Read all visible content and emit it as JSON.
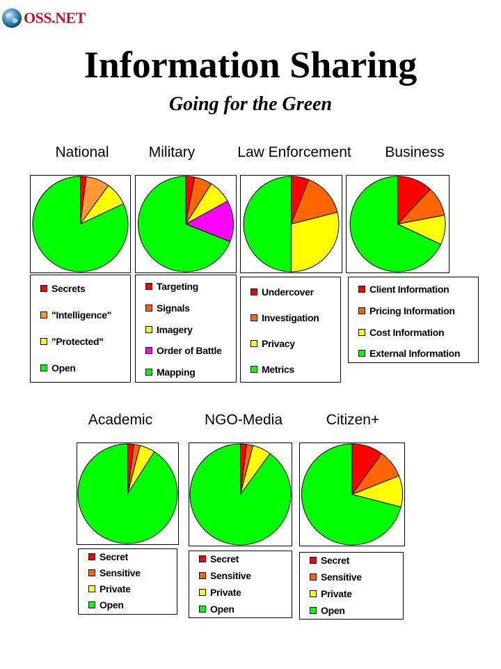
{
  "header": {
    "logo_text": "OSS.NET",
    "title": "Information Sharing",
    "subtitle": "Going for the Green"
  },
  "colors": {
    "red": "#ff0000",
    "orange": "#ff6600",
    "light_orange": "#ff9933",
    "yellow": "#ffff00",
    "magenta": "#ff00ff",
    "green": "#00ff00",
    "logo_red": "#c8102e"
  },
  "chart_data": [
    {
      "type": "pie",
      "title": "National",
      "labels": [
        "Secrets",
        "\"Intelligence\"",
        "\"Protected\"",
        "Open"
      ],
      "values": [
        2,
        8,
        8,
        82
      ],
      "colors": [
        "#ff0000",
        "#ff9933",
        "#ffff00",
        "#00ff00"
      ]
    },
    {
      "type": "pie",
      "title": "Military",
      "labels": [
        "Targeting",
        "Signals",
        "Imagery",
        "Order of Battle",
        "Mapping"
      ],
      "values": [
        3,
        6,
        8,
        14,
        69
      ],
      "colors": [
        "#ff0000",
        "#ff6600",
        "#ffff00",
        "#ff00ff",
        "#00ff00"
      ]
    },
    {
      "type": "pie",
      "title": "Law Enforcement",
      "labels": [
        "Undercover",
        "Investigation",
        "Privacy",
        "Metrics"
      ],
      "values": [
        6,
        15,
        29,
        50
      ],
      "colors": [
        "#ff0000",
        "#ff6600",
        "#ffff00",
        "#00ff00"
      ]
    },
    {
      "type": "pie",
      "title": "Business",
      "labels": [
        "Client Information",
        "Pricing Information",
        "Cost Information",
        "External Information"
      ],
      "values": [
        12,
        10,
        10,
        68
      ],
      "colors": [
        "#ff0000",
        "#ff6600",
        "#ffff00",
        "#00ff00"
      ]
    },
    {
      "type": "pie",
      "title": "Academic",
      "labels": [
        "Secret",
        "Sensitive",
        "Private",
        "Open"
      ],
      "values": [
        2,
        2,
        5,
        91
      ],
      "colors": [
        "#ff0000",
        "#ff6600",
        "#ffff00",
        "#00ff00"
      ]
    },
    {
      "type": "pie",
      "title": "NGO-Media",
      "labels": [
        "Secret",
        "Sensitive",
        "Private",
        "Open"
      ],
      "values": [
        2,
        2,
        6,
        90
      ],
      "colors": [
        "#ff0000",
        "#ff6600",
        "#ffff00",
        "#00ff00"
      ]
    },
    {
      "type": "pie",
      "title": "Citizen+",
      "labels": [
        "Secret",
        "Sensitive",
        "Private",
        "Open"
      ],
      "values": [
        10,
        9,
        10,
        71
      ],
      "colors": [
        "#ff0000",
        "#ff6600",
        "#ffff00",
        "#00ff00"
      ]
    }
  ]
}
